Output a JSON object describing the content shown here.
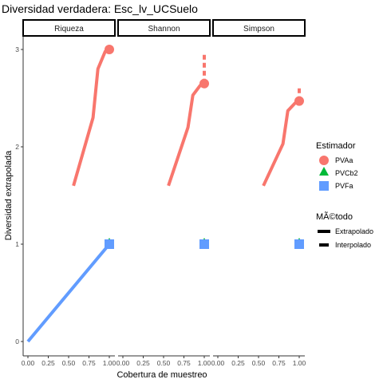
{
  "chart_data": {
    "type": "line",
    "title": "Diversidad verdadera: Esc_lv_UCSuelo",
    "xlabel": "Cobertura de muestreo",
    "ylabel": "Diversidad extrapolada",
    "xlim": [
      0,
      1
    ],
    "ylim": [
      0,
      3
    ],
    "x_ticks": [
      "0.00",
      "0.25",
      "0.50",
      "0.75",
      "1.00"
    ],
    "y_ticks": [
      "0",
      "1",
      "2",
      "3"
    ],
    "grid": false,
    "legend_position": "right",
    "legend_estimator": {
      "title": "Estimador",
      "entries": [
        {
          "label": "PVAa",
          "color": "#F8766D",
          "shape": "circle"
        },
        {
          "label": "PVCb2",
          "color": "#00BA38",
          "shape": "triangle"
        },
        {
          "label": "PVFa",
          "color": "#619CFF",
          "shape": "square"
        }
      ]
    },
    "legend_method": {
      "title": "MÃ©todo",
      "entries": [
        {
          "label": "Extrapolado",
          "linetype": "solid"
        },
        {
          "label": "Interpolado",
          "linetype": "dashed"
        }
      ]
    },
    "facets": [
      {
        "label": "Riqueza",
        "series": [
          {
            "name": "PVAa",
            "color": "#F8766D",
            "solid": [
              [
                0.56,
                1.6
              ],
              [
                0.8,
                2.3
              ],
              [
                0.86,
                2.8
              ],
              [
                0.95,
                2.98
              ],
              [
                1.0,
                3.0
              ]
            ],
            "dashed": [],
            "point": [
              1.0,
              3.0
            ],
            "shape": "circle"
          },
          {
            "name": "PVCb2",
            "color": "#00BA38",
            "solid": [],
            "dashed": [],
            "point": [
              1.0,
              1.0
            ],
            "shape": "triangle"
          },
          {
            "name": "PVFa",
            "color": "#619CFF",
            "solid": [
              [
                0.0,
                0.0
              ],
              [
                1.0,
                1.0
              ]
            ],
            "dashed": [],
            "point": [
              1.0,
              1.0
            ],
            "shape": "square"
          }
        ]
      },
      {
        "label": "Shannon",
        "series": [
          {
            "name": "PVAa",
            "color": "#F8766D",
            "solid": [
              [
                0.56,
                1.6
              ],
              [
                0.8,
                2.2
              ],
              [
                0.86,
                2.53
              ],
              [
                0.95,
                2.63
              ],
              [
                1.0,
                2.65
              ]
            ],
            "dashed": [
              [
                1.0,
                2.65
              ],
              [
                1.0,
                2.95
              ]
            ],
            "point": [
              1.0,
              2.65
            ],
            "shape": "circle"
          },
          {
            "name": "PVCb2",
            "color": "#00BA38",
            "solid": [],
            "dashed": [],
            "point": [
              1.0,
              1.0
            ],
            "shape": "triangle"
          },
          {
            "name": "PVFa",
            "color": "#619CFF",
            "solid": [],
            "dashed": [],
            "point": [
              1.0,
              1.0
            ],
            "shape": "square"
          }
        ]
      },
      {
        "label": "Simpson",
        "series": [
          {
            "name": "PVAa",
            "color": "#F8766D",
            "solid": [
              [
                0.56,
                1.6
              ],
              [
                0.8,
                2.03
              ],
              [
                0.86,
                2.37
              ],
              [
                0.95,
                2.45
              ],
              [
                1.0,
                2.47
              ]
            ],
            "dashed": [
              [
                1.0,
                2.47
              ],
              [
                1.0,
                2.62
              ]
            ],
            "point": [
              1.0,
              2.47
            ],
            "shape": "circle"
          },
          {
            "name": "PVCb2",
            "color": "#00BA38",
            "solid": [],
            "dashed": [],
            "point": [
              1.0,
              1.0
            ],
            "shape": "triangle"
          },
          {
            "name": "PVFa",
            "color": "#619CFF",
            "solid": [],
            "dashed": [],
            "point": [
              1.0,
              1.0
            ],
            "shape": "square"
          }
        ]
      }
    ]
  }
}
